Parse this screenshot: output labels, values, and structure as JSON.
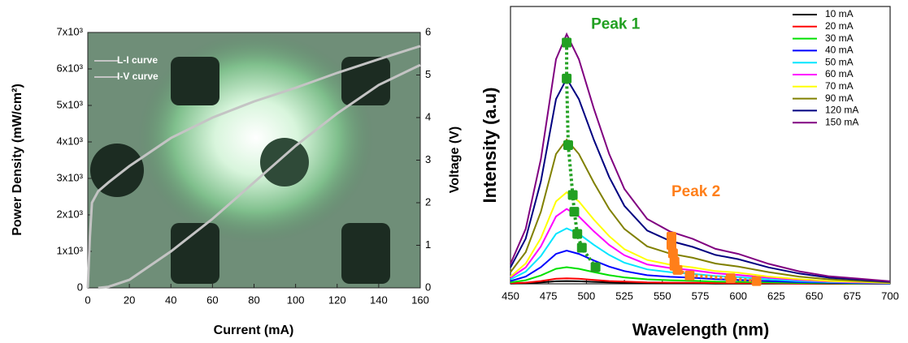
{
  "chart_data": [
    {
      "type": "line",
      "xlabel": "Current (mA)",
      "ylabel": "Power Density (mW/cm²)",
      "y2label": "Voltage (V)",
      "x": [
        0,
        1,
        2,
        5,
        10,
        20,
        40,
        60,
        80,
        100,
        120,
        140,
        160
      ],
      "xlim": [
        0,
        160
      ],
      "xticks": [
        0,
        20,
        40,
        60,
        80,
        100,
        120,
        140,
        160
      ],
      "ylim": [
        0,
        7000
      ],
      "yticks": [
        0,
        {
          "value": 1000,
          "label": "1x10³"
        },
        {
          "value": 2000,
          "label": "2x10³"
        },
        {
          "value": 3000,
          "label": "3x10³"
        },
        {
          "value": 4000,
          "label": "4x10³"
        },
        {
          "value": 5000,
          "label": "5x10³"
        },
        {
          "value": 6000,
          "label": "6x10³"
        },
        {
          "value": 7000,
          "label": "7x10³"
        }
      ],
      "y2lim": [
        0,
        6
      ],
      "y2ticks": [
        0,
        1,
        2,
        3,
        4,
        5,
        6
      ],
      "legend": "upper left",
      "series": [
        {
          "name": "L-I curve",
          "color": "#c4c4c4",
          "values": [
            null,
            null,
            null,
            0,
            30,
            220,
            1000,
            1890,
            2890,
            3890,
            4780,
            5560,
            6110
          ]
        },
        {
          "name": "I-V curve",
          "color": "#c4c4c4",
          "axis": "y2",
          "values": [
            0,
            1.2,
            2.0,
            2.27,
            2.48,
            2.86,
            3.52,
            4.0,
            4.38,
            4.7,
            5.05,
            5.37,
            5.68
          ]
        }
      ]
    },
    {
      "type": "line",
      "xlabel": "Wavelength (nm)",
      "ylabel": "Intensity (a.u)",
      "x": [
        450,
        460,
        470,
        480,
        487,
        495,
        505,
        515,
        525,
        540,
        555,
        570,
        585,
        600,
        620,
        640,
        660,
        680,
        700
      ],
      "xlim": [
        450,
        700
      ],
      "xticks": [
        450,
        475,
        500,
        525,
        550,
        575,
        600,
        625,
        650,
        675,
        700
      ],
      "ylim": [
        0,
        1
      ],
      "legend": "upper right",
      "series": [
        {
          "name": "10 mA",
          "color": "#000000",
          "values": [
            0.001,
            0.002,
            0.005,
            0.009,
            0.01,
            0.009,
            0.007,
            0.005,
            0.004,
            0.003,
            0.002,
            0.002,
            0.001,
            0.001,
            0.001,
            0.001,
            0,
            0,
            0
          ]
        },
        {
          "name": "20 mA",
          "color": "#ff0000",
          "values": [
            0.002,
            0.004,
            0.01,
            0.018,
            0.02,
            0.018,
            0.014,
            0.01,
            0.008,
            0.005,
            0.004,
            0.004,
            0.003,
            0.002,
            0.002,
            0.001,
            0.001,
            0,
            0
          ]
        },
        {
          "name": "30 mA",
          "color": "#00e000",
          "values": [
            0.005,
            0.013,
            0.03,
            0.054,
            0.06,
            0.054,
            0.042,
            0.031,
            0.023,
            0.016,
            0.013,
            0.011,
            0.008,
            0.007,
            0.005,
            0.003,
            0.002,
            0.001,
            0.001
          ]
        },
        {
          "name": "40 mA",
          "color": "#0000ff",
          "values": [
            0.01,
            0.026,
            0.06,
            0.108,
            0.12,
            0.108,
            0.084,
            0.062,
            0.046,
            0.031,
            0.025,
            0.022,
            0.017,
            0.014,
            0.01,
            0.006,
            0.004,
            0.002,
            0.001
          ]
        },
        {
          "name": "50 mA",
          "color": "#00e5ff",
          "values": [
            0.016,
            0.044,
            0.1,
            0.18,
            0.2,
            0.18,
            0.14,
            0.104,
            0.076,
            0.052,
            0.042,
            0.036,
            0.028,
            0.024,
            0.016,
            0.01,
            0.006,
            0.004,
            0.002
          ]
        },
        {
          "name": "60 mA",
          "color": "#ff00ff",
          "values": [
            0.022,
            0.059,
            0.135,
            0.243,
            0.27,
            0.243,
            0.189,
            0.14,
            0.103,
            0.07,
            0.057,
            0.049,
            0.038,
            0.032,
            0.022,
            0.014,
            0.008,
            0.005,
            0.003
          ]
        },
        {
          "name": "70 mA",
          "color": "#ffff00",
          "values": [
            0.026,
            0.073,
            0.165,
            0.297,
            0.33,
            0.297,
            0.231,
            0.172,
            0.125,
            0.086,
            0.069,
            0.059,
            0.046,
            0.04,
            0.026,
            0.017,
            0.01,
            0.007,
            0.003
          ]
        },
        {
          "name": "90 mA",
          "color": "#808000",
          "values": [
            0.042,
            0.114,
            0.26,
            0.468,
            0.52,
            0.468,
            0.364,
            0.27,
            0.198,
            0.135,
            0.109,
            0.094,
            0.073,
            0.062,
            0.042,
            0.026,
            0.016,
            0.01,
            0.005
          ]
        },
        {
          "name": "120 mA",
          "color": "#000080",
          "values": [
            0.059,
            0.163,
            0.37,
            0.666,
            0.74,
            0.666,
            0.518,
            0.385,
            0.281,
            0.192,
            0.155,
            0.133,
            0.104,
            0.089,
            0.059,
            0.037,
            0.022,
            0.015,
            0.007
          ]
        },
        {
          "name": "150 mA",
          "color": "#800080",
          "values": [
            0.072,
            0.198,
            0.45,
            0.81,
            0.9,
            0.81,
            0.63,
            0.468,
            0.342,
            0.234,
            0.189,
            0.162,
            0.126,
            0.108,
            0.072,
            0.045,
            0.027,
            0.018,
            0.009
          ]
        }
      ],
      "markers": [
        {
          "name": "Peak 1",
          "color": "#22a022",
          "x": [
            487,
            487,
            488,
            491,
            492,
            494,
            497,
            506
          ],
          "values": [
            0.87,
            0.74,
            0.5,
            0.32,
            0.26,
            0.18,
            0.13,
            0.06
          ]
        },
        {
          "name": "Peak 2",
          "color": "#ff7f1a",
          "x": [
            556,
            556,
            557,
            558,
            558,
            560,
            568,
            595,
            612
          ],
          "values": [
            0.17,
            0.14,
            0.11,
            0.08,
            0.065,
            0.05,
            0.03,
            0.02,
            0.01
          ]
        }
      ]
    }
  ]
}
